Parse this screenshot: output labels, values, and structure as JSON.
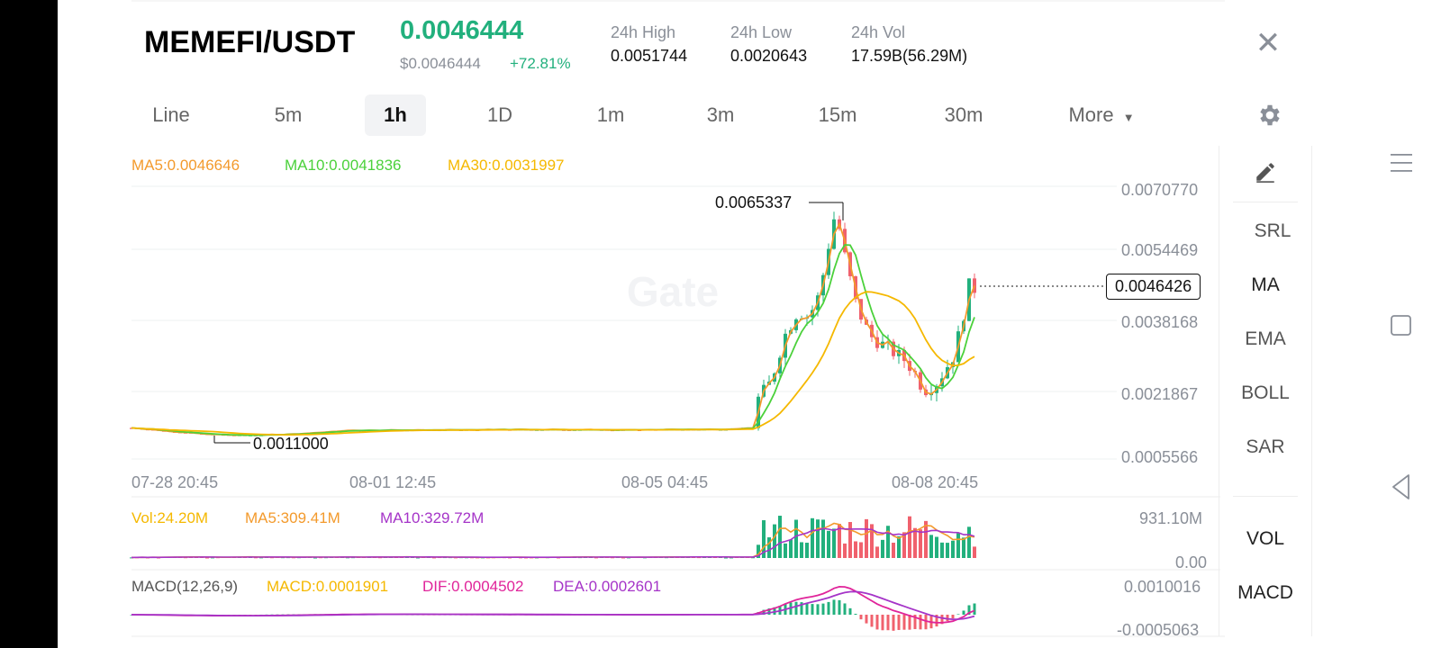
{
  "header": {
    "pair": "MEMEFI/USDT",
    "price": "0.0046444",
    "price_usd": "$0.0046444",
    "change": "+72.81%",
    "stats": [
      {
        "label": "24h High",
        "value": "0.0051744"
      },
      {
        "label": "24h Low",
        "value": "0.0020643"
      },
      {
        "label": "24h Vol",
        "value": "17.59B(56.29M)"
      }
    ]
  },
  "tabs": [
    "Line",
    "5m",
    "1h",
    "1D",
    "1m",
    "3m",
    "15m",
    "30m",
    "More"
  ],
  "active_tab": "1h",
  "indicators": [
    "SRL",
    "MA",
    "EMA",
    "BOLL",
    "SAR",
    "VOL",
    "MACD"
  ],
  "colors": {
    "up": "#22b07d",
    "down": "#f0616d",
    "ma5": "#f39a2c",
    "ma10": "#4bd13b",
    "ma30": "#f5b800",
    "macd_dif": "#e0249a",
    "macd_dea": "#a534c8"
  },
  "chart_data": {
    "type": "candlestick",
    "ma_legend": {
      "ma5": "MA5:0.0046646",
      "ma10": "MA10:0.0041836",
      "ma30": "MA30:0.0031997"
    },
    "y_ticks": [
      "0.0070770",
      "0.0054469",
      "0.0038168",
      "0.0021867",
      "0.0005566"
    ],
    "x_ticks": [
      "07-28 20:45",
      "08-01 12:45",
      "08-05 04:45",
      "08-08 20:45"
    ],
    "high_label": "0.0065337",
    "low_label": "0.0011000",
    "current_price_tag": "0.0046426",
    "price_path": [
      [
        0,
        0.0013
      ],
      [
        40,
        0.00122
      ],
      [
        80,
        0.00115
      ],
      [
        120,
        0.00112
      ],
      [
        160,
        0.00114
      ],
      [
        200,
        0.00118
      ],
      [
        240,
        0.00124
      ],
      [
        300,
        0.00125
      ],
      [
        360,
        0.00125
      ],
      [
        420,
        0.00126
      ],
      [
        480,
        0.00126
      ],
      [
        540,
        0.00125
      ],
      [
        600,
        0.00126
      ],
      [
        660,
        0.00127
      ],
      [
        690,
        0.0013
      ],
      [
        696,
        0.002
      ],
      [
        710,
        0.0024
      ],
      [
        725,
        0.0035
      ],
      [
        740,
        0.0041
      ],
      [
        752,
        0.00395
      ],
      [
        764,
        0.0045
      ],
      [
        776,
        0.0059
      ],
      [
        782,
        0.0065
      ],
      [
        792,
        0.0054
      ],
      [
        805,
        0.0042
      ],
      [
        820,
        0.0035
      ],
      [
        840,
        0.0032
      ],
      [
        860,
        0.0029
      ],
      [
        870,
        0.0026
      ],
      [
        880,
        0.0022
      ],
      [
        895,
        0.0024
      ],
      [
        912,
        0.003
      ],
      [
        922,
        0.0038
      ],
      [
        930,
        0.0047
      ],
      [
        938,
        0.0046
      ]
    ],
    "volume": {
      "legend": {
        "vol": "Vol:24.20M",
        "ma5": "MA5:309.41M",
        "ma10": "MA10:329.72M"
      },
      "y_ticks": [
        "931.10M",
        "0.00"
      ]
    },
    "macd": {
      "legend": {
        "name": "MACD(12,26,9)",
        "macd": "MACD:0.0001901",
        "dif": "DIF:0.0004502",
        "dea": "DEA:0.0002601"
      },
      "y_ticks": [
        "0.0010016",
        "-0.0005063"
      ]
    }
  }
}
